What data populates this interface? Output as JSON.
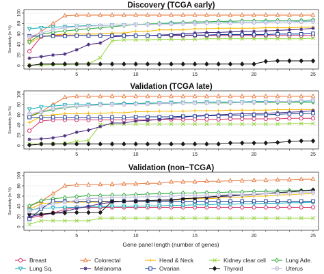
{
  "figure": {
    "xlabel": "Gene panel length (number of genes)"
  },
  "chart_data": [
    {
      "type": "line",
      "title": "Discovery (TCGA early)",
      "ylabel": "Sensitivity (in %)",
      "xlim": [
        1,
        25
      ],
      "ylim": [
        0,
        100
      ],
      "xticks": [
        5,
        10,
        15,
        20,
        25
      ],
      "yticks": [
        0,
        20,
        40,
        60,
        80,
        100
      ],
      "grid": true,
      "x": [
        1,
        2,
        3,
        4,
        5,
        6,
        7,
        8,
        9,
        10,
        11,
        12,
        13,
        14,
        15,
        16,
        17,
        18,
        19,
        20,
        21,
        22,
        23,
        24,
        25
      ],
      "series": [
        {
          "name": "Breast",
          "values": [
            27,
            55,
            57,
            57,
            57,
            57,
            57,
            57,
            57,
            57,
            57,
            57,
            57,
            57,
            57,
            57,
            57,
            57,
            57,
            57,
            57,
            57,
            57,
            57,
            57
          ]
        },
        {
          "name": "Colorectal",
          "values": [
            50,
            65,
            80,
            95,
            96,
            96,
            96,
            96,
            96,
            96,
            96,
            96,
            96,
            96,
            96,
            96,
            96,
            96,
            96,
            96,
            96,
            96,
            96,
            96,
            96
          ]
        },
        {
          "name": "Head & Neck",
          "values": [
            43,
            55,
            58,
            60,
            60,
            60,
            60,
            62,
            62,
            65,
            65,
            68,
            68,
            68,
            70,
            70,
            71,
            71,
            71,
            71,
            72,
            72,
            72,
            73,
            73
          ]
        },
        {
          "name": "Kidney clear cell",
          "values": [
            1,
            1,
            2,
            2,
            3,
            3,
            15,
            47,
            49,
            49,
            49,
            50,
            50,
            50,
            50,
            51,
            51,
            51,
            51,
            51,
            51,
            51,
            51,
            51,
            52
          ]
        },
        {
          "name": "Lung Ade.",
          "values": [
            45,
            60,
            63,
            66,
            68,
            70,
            72,
            74,
            76,
            78,
            79,
            80,
            81,
            82,
            83,
            83,
            84,
            84,
            85,
            85,
            85,
            86,
            86,
            86,
            87
          ]
        },
        {
          "name": "Lung Sq.",
          "values": [
            70,
            72,
            73,
            74,
            75,
            76,
            76,
            77,
            77,
            78,
            78,
            79,
            80,
            80,
            80,
            81,
            81,
            82,
            82,
            82,
            83,
            83,
            83,
            84,
            84
          ]
        },
        {
          "name": "Melanoma",
          "values": [
            14,
            17,
            20,
            22,
            30,
            40,
            43,
            55,
            56,
            57,
            57,
            58,
            59,
            60,
            62,
            63,
            63,
            64,
            65,
            65,
            66,
            67,
            68,
            69,
            71
          ]
        },
        {
          "name": "Ovarian",
          "values": [
            56,
            56,
            56,
            56,
            57,
            57,
            57,
            57,
            57,
            57,
            57,
            57,
            58,
            58,
            58,
            58,
            59,
            59,
            59,
            59,
            59,
            60,
            60,
            60,
            61
          ]
        },
        {
          "name": "Thyroid",
          "values": [
            0,
            3,
            3,
            3,
            3,
            3,
            3,
            3,
            3,
            3,
            3,
            3,
            3,
            3,
            3,
            3,
            3,
            3,
            3,
            3,
            8,
            9,
            9,
            9,
            9
          ]
        },
        {
          "name": "Uterus",
          "values": [
            55,
            62,
            68,
            72,
            74,
            75,
            76,
            77,
            77,
            78,
            78,
            79,
            79,
            80,
            80,
            81,
            81,
            81,
            82,
            82,
            82,
            83,
            83,
            83,
            84
          ]
        }
      ]
    },
    {
      "type": "line",
      "title": "Validation (TCGA late)",
      "ylabel": "Sensitivity (in %)",
      "xlim": [
        1,
        25
      ],
      "ylim": [
        0,
        100
      ],
      "xticks": [
        5,
        10,
        15,
        20,
        25
      ],
      "yticks": [
        0,
        20,
        40,
        60,
        80,
        100
      ],
      "grid": true,
      "x": [
        1,
        2,
        3,
        4,
        5,
        6,
        7,
        8,
        9,
        10,
        11,
        12,
        13,
        14,
        15,
        16,
        17,
        18,
        19,
        20,
        21,
        22,
        23,
        24,
        25
      ],
      "series": [
        {
          "name": "Breast",
          "values": [
            29,
            48,
            50,
            50,
            50,
            50,
            50,
            50,
            50,
            50,
            50,
            51,
            51,
            51,
            51,
            51,
            51,
            52,
            52,
            52,
            52,
            52,
            53,
            53,
            53
          ]
        },
        {
          "name": "Colorectal",
          "values": [
            58,
            66,
            80,
            94,
            96,
            96,
            96,
            96,
            96,
            96,
            96,
            96,
            96,
            96,
            96,
            96,
            96,
            96,
            96,
            96,
            96,
            96,
            96,
            96,
            96
          ]
        },
        {
          "name": "Head & Neck",
          "values": [
            45,
            57,
            60,
            62,
            62,
            63,
            63,
            64,
            64,
            66,
            66,
            67,
            67,
            67,
            68,
            68,
            68,
            69,
            69,
            69,
            69,
            70,
            70,
            70,
            70
          ]
        },
        {
          "name": "Kidney clear cell",
          "values": [
            3,
            3,
            3,
            4,
            8,
            10,
            41,
            41,
            42,
            42,
            42,
            42,
            42,
            42,
            42,
            42,
            42,
            42,
            42,
            42,
            42,
            42,
            43,
            43,
            43
          ]
        },
        {
          "name": "Lung Ade.",
          "values": [
            56,
            65,
            70,
            74,
            76,
            78,
            80,
            81,
            82,
            82,
            82,
            82,
            82,
            83,
            83,
            83,
            83,
            83,
            84,
            84,
            84,
            84,
            84,
            84,
            85
          ]
        },
        {
          "name": "Lung Sq.",
          "values": [
            71,
            75,
            77,
            79,
            80,
            80,
            81,
            81,
            82,
            82,
            83,
            83,
            84,
            84,
            84,
            85,
            85,
            85,
            85,
            86,
            86,
            86,
            86,
            86,
            87
          ]
        },
        {
          "name": "Melanoma",
          "values": [
            12,
            13,
            15,
            19,
            26,
            30,
            37,
            44,
            44,
            48,
            49,
            51,
            53,
            55,
            58,
            59,
            60,
            61,
            62,
            62,
            63,
            64,
            65,
            66,
            68
          ]
        },
        {
          "name": "Ovarian",
          "values": [
            55,
            55,
            55,
            55,
            55,
            55,
            55,
            55,
            55,
            56,
            56,
            56,
            56,
            57,
            57,
            58,
            58,
            59,
            59,
            60,
            60,
            61,
            62,
            62,
            63
          ]
        },
        {
          "name": "Thyroid",
          "values": [
            1,
            3,
            3,
            3,
            3,
            3,
            3,
            3,
            3,
            3,
            3,
            3,
            3,
            3,
            3,
            3,
            3,
            5,
            5,
            5,
            5,
            6,
            8,
            9,
            9
          ]
        },
        {
          "name": "Uterus",
          "values": [
            62,
            66,
            72,
            75,
            77,
            78,
            79,
            80,
            80,
            81,
            81,
            82,
            82,
            83,
            83,
            83,
            84,
            84,
            84,
            85,
            85,
            86,
            86,
            87,
            88
          ]
        }
      ]
    },
    {
      "type": "line",
      "title": "Validation (non−TCGA)",
      "ylabel": "Sensitivity (in %)",
      "xlim": [
        1,
        25
      ],
      "ylim": [
        0,
        100
      ],
      "xticks": [
        5,
        10,
        15,
        20,
        25
      ],
      "yticks": [
        0,
        20,
        40,
        60,
        80,
        100
      ],
      "grid": true,
      "x": [
        1,
        2,
        3,
        4,
        5,
        6,
        7,
        8,
        9,
        10,
        11,
        12,
        13,
        14,
        15,
        16,
        17,
        18,
        19,
        20,
        21,
        22,
        23,
        24,
        25
      ],
      "series": [
        {
          "name": "Breast",
          "values": [
            17,
            22,
            27,
            34,
            38,
            38,
            38,
            38,
            38,
            38,
            38,
            38,
            38,
            38,
            38,
            38,
            38,
            38,
            38,
            38,
            38,
            38,
            38,
            38,
            38
          ]
        },
        {
          "name": "Colorectal",
          "values": [
            40,
            50,
            65,
            80,
            82,
            82,
            83,
            83,
            84,
            84,
            85,
            85,
            88,
            88,
            88,
            89,
            89,
            90,
            90,
            91,
            91,
            92,
            92,
            93,
            93
          ]
        },
        {
          "name": "Head & Neck",
          "values": [
            34,
            45,
            47,
            48,
            48,
            48,
            48,
            50,
            50,
            50,
            50,
            52,
            52,
            53,
            55,
            55,
            56,
            58,
            58,
            60,
            60,
            62,
            63,
            64,
            65
          ]
        },
        {
          "name": "Kidney clear cell",
          "values": [
            5,
            12,
            12,
            12,
            12,
            12,
            17,
            17,
            17,
            17,
            17,
            17,
            17,
            17,
            17,
            17,
            17,
            17,
            17,
            17,
            17,
            17,
            17,
            17,
            17
          ]
        },
        {
          "name": "Lung Ade.",
          "values": [
            41,
            51,
            55,
            57,
            59,
            61,
            61,
            62,
            62,
            63,
            64,
            65,
            65,
            66,
            66,
            67,
            67,
            68,
            68,
            69,
            69,
            70,
            71,
            71,
            72
          ]
        },
        {
          "name": "Lung Sq.",
          "values": [
            33,
            36,
            37,
            38,
            38,
            39,
            39,
            40,
            40,
            40,
            41,
            41,
            42,
            42,
            43,
            43,
            44,
            44,
            45,
            45,
            46,
            46,
            47,
            47,
            48
          ]
        },
        {
          "name": "Melanoma",
          "values": [
            20,
            24,
            26,
            30,
            36,
            40,
            45,
            48,
            50,
            51,
            51,
            52,
            53,
            55,
            56,
            57,
            59,
            60,
            62,
            63,
            65,
            67,
            68,
            70,
            71
          ]
        },
        {
          "name": "Ovarian",
          "values": [
            15,
            35,
            50,
            50,
            50,
            50,
            50,
            50,
            50,
            50,
            50,
            50,
            50,
            50,
            50,
            50,
            50,
            50,
            50,
            50,
            50,
            50,
            50,
            50,
            50
          ]
        },
        {
          "name": "Thyroid",
          "values": [
            25,
            25,
            27,
            27,
            28,
            28,
            28,
            50,
            50,
            50,
            51,
            52,
            52,
            55,
            56,
            58,
            60,
            62,
            62,
            64,
            65,
            67,
            68,
            70,
            72
          ]
        },
        {
          "name": "Uterus",
          "values": [
            30,
            40,
            45,
            48,
            52,
            55,
            56,
            57,
            58,
            58,
            59,
            59,
            60,
            61,
            61,
            62,
            62,
            63,
            63,
            64,
            65,
            65,
            66,
            67,
            67
          ]
        }
      ]
    }
  ],
  "legend": [
    {
      "name": "Breast",
      "color": "#d6336c",
      "marker": "circle"
    },
    {
      "name": "Colorectal",
      "color": "#e67e45",
      "marker": "triangle-up"
    },
    {
      "name": "Head & Neck",
      "color": "#f5b800",
      "marker": "plus"
    },
    {
      "name": "Kidney clear cell",
      "color": "#9bd64a",
      "marker": "x"
    },
    {
      "name": "Lung Ade.",
      "color": "#2eaa3a",
      "marker": "diamond"
    },
    {
      "name": "Lung Sq.",
      "color": "#1fb0b8",
      "marker": "triangle-down"
    },
    {
      "name": "Melanoma",
      "color": "#4a2a80",
      "marker": "star"
    },
    {
      "name": "Ovarian",
      "color": "#1e3f9a",
      "marker": "square"
    },
    {
      "name": "Thyroid",
      "color": "#1a1a1a",
      "marker": "diamond-filled"
    },
    {
      "name": "Uterus",
      "color": "#b8b8d8",
      "marker": "circle-plus"
    }
  ]
}
